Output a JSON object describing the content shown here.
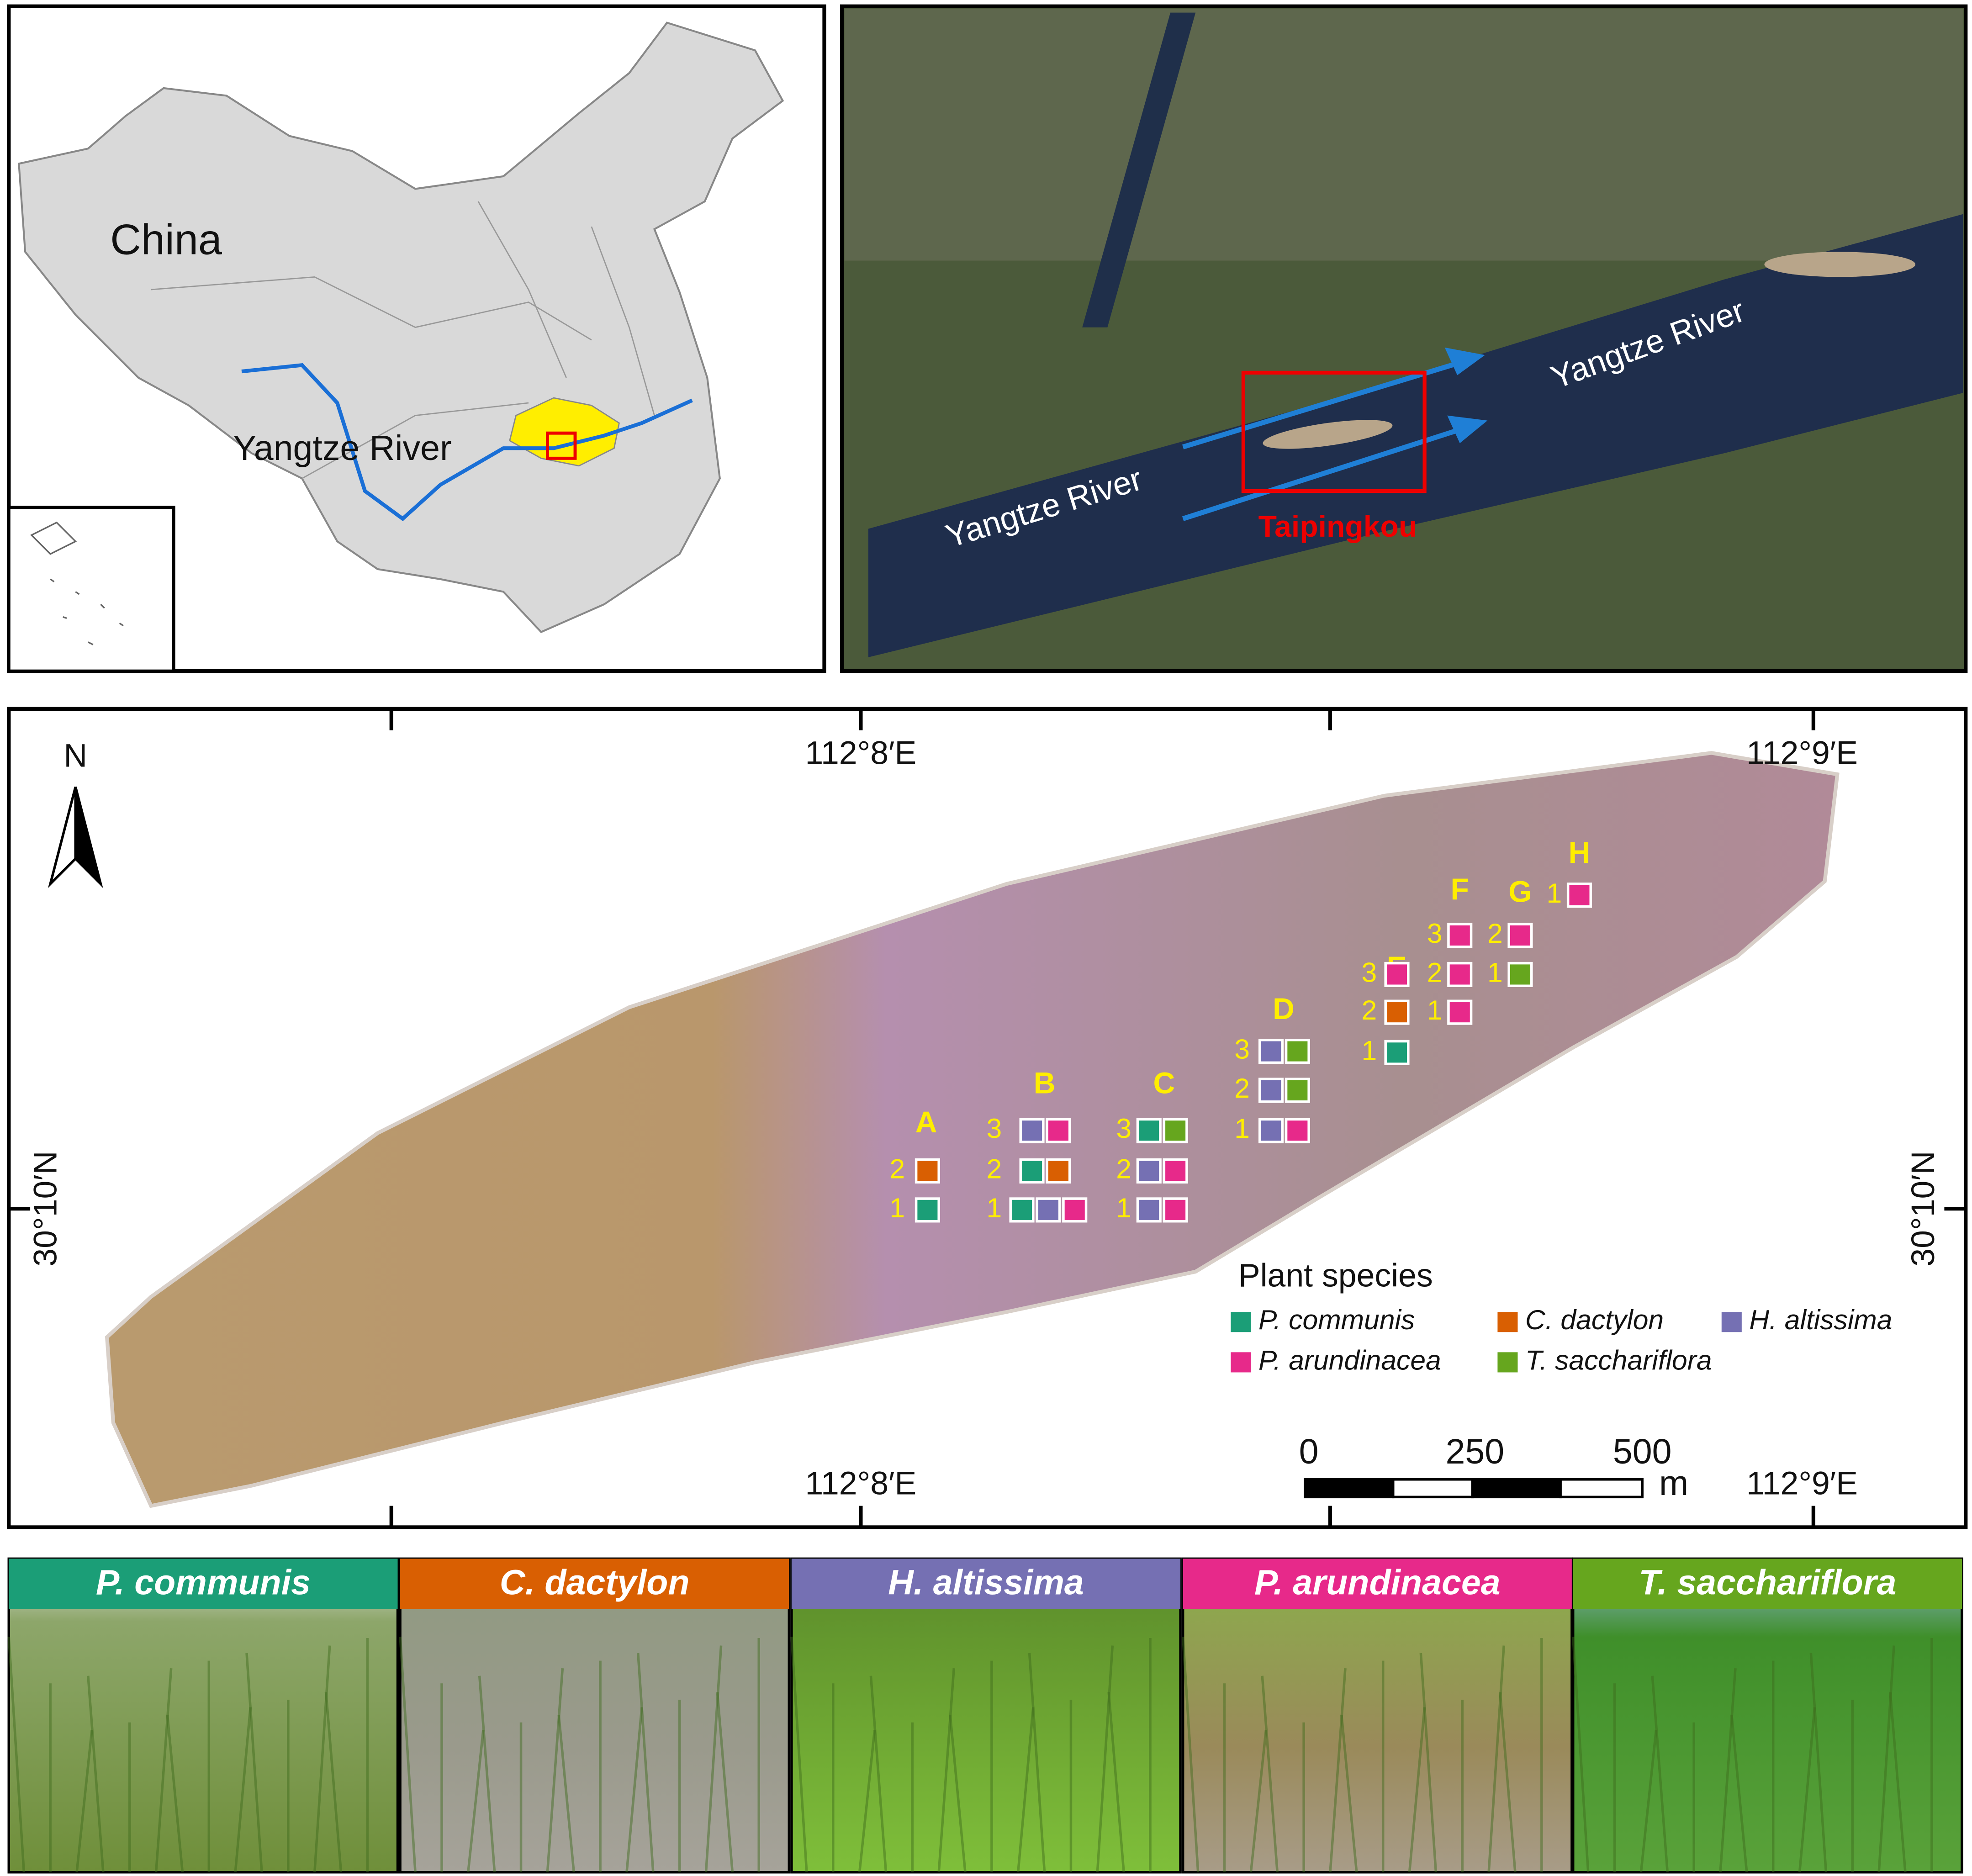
{
  "china_panel": {
    "country_label": "China",
    "river_label": "Yangtze River"
  },
  "satellite_panel": {
    "river_labels": [
      "Yangtze River",
      "Yangtze River"
    ],
    "site_label": "Taipingkou"
  },
  "study_area": {
    "north_label": "N",
    "longitude_labels": {
      "top": [
        "112°8′E",
        "112°9′E"
      ],
      "bottom": [
        "112°8′E",
        "112°9′E"
      ]
    },
    "latitude_labels": [
      "30°10′N",
      "30°10′N"
    ],
    "sites": [
      {
        "label": "A",
        "plots": [
          {
            "number": 2,
            "species": [
              1
            ]
          },
          {
            "number": 1,
            "species": [
              0
            ]
          }
        ]
      },
      {
        "label": "B",
        "plots": [
          {
            "number": 3,
            "species": [
              2,
              3
            ]
          },
          {
            "number": 2,
            "species": [
              0,
              1
            ]
          },
          {
            "number": 1,
            "species": [
              0,
              2,
              3
            ]
          }
        ]
      },
      {
        "label": "C",
        "plots": [
          {
            "number": 3,
            "species": [
              0,
              4
            ]
          },
          {
            "number": 2,
            "species": [
              2,
              3
            ]
          },
          {
            "number": 1,
            "species": [
              2,
              3
            ]
          }
        ]
      },
      {
        "label": "D",
        "plots": [
          {
            "number": 3,
            "species": [
              2,
              4
            ]
          },
          {
            "number": 2,
            "species": [
              2,
              4
            ]
          },
          {
            "number": 1,
            "species": [
              2,
              3
            ]
          }
        ]
      },
      {
        "label": "E",
        "plots": [
          {
            "number": 3,
            "species": [
              3
            ]
          },
          {
            "number": 2,
            "species": [
              1
            ]
          },
          {
            "number": 1,
            "species": [
              0
            ]
          }
        ]
      },
      {
        "label": "F",
        "plots": [
          {
            "number": 3,
            "species": [
              3
            ]
          },
          {
            "number": 2,
            "species": [
              3
            ]
          },
          {
            "number": 1,
            "species": [
              3
            ]
          }
        ]
      },
      {
        "label": "G",
        "plots": [
          {
            "number": 2,
            "species": [
              3
            ]
          },
          {
            "number": 1,
            "species": [
              4
            ]
          }
        ]
      },
      {
        "label": "H",
        "plots": [
          {
            "number": 1,
            "species": [
              3
            ]
          }
        ]
      }
    ],
    "legend": {
      "title": "Plant species"
    },
    "scale_bar": {
      "labels": [
        0,
        250,
        500
      ],
      "unit": "m"
    }
  },
  "species": [
    {
      "name": "P. communis",
      "color": "#1b9e77"
    },
    {
      "name": "C. dactylon",
      "color": "#d95f02"
    },
    {
      "name": "H. altissima",
      "color": "#7570b3"
    },
    {
      "name": "P. arundinacea",
      "color": "#e7298a"
    },
    {
      "name": "T. sacchariflora",
      "color": "#66a61e"
    }
  ]
}
